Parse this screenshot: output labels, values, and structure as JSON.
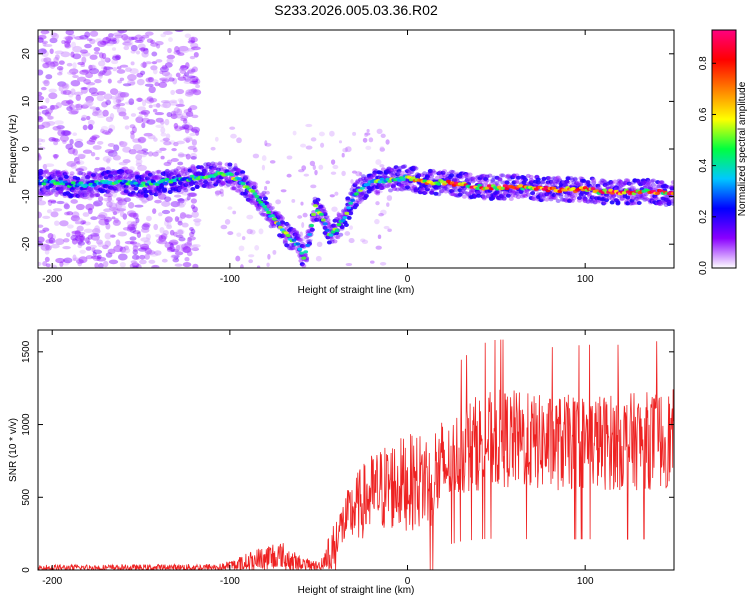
{
  "title": "S233.2026.005.03.36.R02",
  "chart_data": [
    {
      "type": "heatmap",
      "xlabel": "Height of straight line (km)",
      "ylabel": "Frequency (Hz)",
      "xlim": [
        -208,
        150
      ],
      "ylim": [
        -25,
        25
      ],
      "xticks": [
        -200,
        -100,
        0,
        100
      ],
      "yticks": [
        -20,
        -10,
        0,
        10,
        20
      ],
      "ridge": [
        [
          -208,
          -7
        ],
        [
          -200,
          -7
        ],
        [
          -190,
          -7.5
        ],
        [
          -180,
          -7.5
        ],
        [
          -170,
          -7
        ],
        [
          -160,
          -7
        ],
        [
          -150,
          -7.5
        ],
        [
          -140,
          -7
        ],
        [
          -130,
          -6.5
        ],
        [
          -120,
          -6
        ],
        [
          -110,
          -5.5
        ],
        [
          -105,
          -5
        ],
        [
          -100,
          -5.5
        ],
        [
          -95,
          -6.5
        ],
        [
          -90,
          -8
        ],
        [
          -85,
          -10
        ],
        [
          -80,
          -12
        ],
        [
          -75,
          -15
        ],
        [
          -70,
          -17
        ],
        [
          -65,
          -19
        ],
        [
          -62,
          -20
        ],
        [
          -58,
          -23
        ],
        [
          -55,
          -18
        ],
        [
          -52,
          -12
        ],
        [
          -48,
          -14
        ],
        [
          -44,
          -18
        ],
        [
          -40,
          -17
        ],
        [
          -35,
          -14
        ],
        [
          -30,
          -10
        ],
        [
          -25,
          -8
        ],
        [
          -20,
          -7
        ],
        [
          -10,
          -6.5
        ],
        [
          0,
          -6
        ],
        [
          10,
          -7
        ],
        [
          20,
          -7
        ],
        [
          30,
          -7.5
        ],
        [
          40,
          -8
        ],
        [
          50,
          -8
        ],
        [
          60,
          -8
        ],
        [
          70,
          -8
        ],
        [
          80,
          -8.5
        ],
        [
          90,
          -8.5
        ],
        [
          100,
          -8.5
        ],
        [
          110,
          -9
        ],
        [
          120,
          -9
        ],
        [
          130,
          -9
        ],
        [
          140,
          -9
        ],
        [
          150,
          -9.5
        ]
      ],
      "colorbar": {
        "label": "Normalized spectral amplitude",
        "ticks": [
          0.0,
          0.2,
          0.4,
          0.6,
          0.8
        ],
        "range": [
          0,
          0.93
        ],
        "stops": [
          "#ffffff",
          "#8a00ff",
          "#0000ff",
          "#00c8ff",
          "#00ff40",
          "#ffff00",
          "#ff8000",
          "#ff0000",
          "#ff0080"
        ]
      }
    },
    {
      "type": "line",
      "xlabel": "Height of straight line (km)",
      "ylabel": "SNR (10 * v/v)",
      "xlim": [
        -208,
        150
      ],
      "ylim": [
        0,
        1650
      ],
      "xticks": [
        -200,
        -100,
        0,
        100
      ],
      "yticks": [
        0,
        500,
        1000,
        1500
      ],
      "series_color": "#ee2222",
      "envelope": [
        [
          -208,
          25
        ],
        [
          -150,
          25
        ],
        [
          -105,
          30
        ],
        [
          -95,
          60
        ],
        [
          -85,
          100
        ],
        [
          -75,
          140
        ],
        [
          -70,
          130
        ],
        [
          -60,
          60
        ],
        [
          -50,
          40
        ],
        [
          -40,
          250
        ],
        [
          -30,
          420
        ],
        [
          -20,
          520
        ],
        [
          -10,
          580
        ],
        [
          0,
          600
        ],
        [
          10,
          620
        ],
        [
          20,
          680
        ],
        [
          30,
          820
        ],
        [
          40,
          880
        ],
        [
          50,
          900
        ],
        [
          60,
          900
        ],
        [
          70,
          880
        ],
        [
          80,
          870
        ],
        [
          100,
          880
        ],
        [
          120,
          880
        ],
        [
          150,
          900
        ]
      ]
    }
  ]
}
